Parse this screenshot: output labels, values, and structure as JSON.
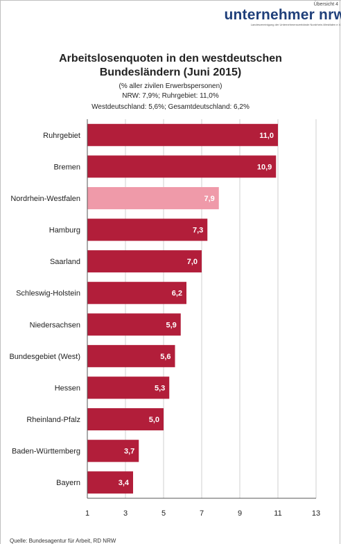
{
  "header": {
    "uebersicht": "Übersicht 4",
    "logo_text": "unternehmer nrw",
    "logo_subtext": "Landesvereinigung der Unternehmensverbände Nordrhein-Westfalen e.V."
  },
  "footer": {
    "source": "Quelle: Bundesagentur für Arbeit, RD NRW"
  },
  "colors": {
    "bar": "#b21e3a",
    "bar_highlight": "#ef9aa9",
    "grid": "#cfcfcf",
    "axis": "#555555"
  },
  "chart_data": {
    "type": "bar",
    "orientation": "horizontal",
    "title_line1": "Arbeitslosenquoten in den westdeutschen",
    "title_line2": "Bundesländern (Juni 2015)",
    "subtitle_line1": "(% aller zivilen Erwerbspersonen)",
    "subtitle_line2": "NRW: 7,9%; Ruhrgebiet: 11,0%",
    "subtitle_line3": "Westdeutschland: 5,6%; Gesamtdeutschland: 6,2%",
    "categories": [
      "Ruhrgebiet",
      "Bremen",
      "Nordrhein-Westfalen",
      "Hamburg",
      "Saarland",
      "Schleswig-Holstein",
      "Niedersachsen",
      "Bundesgebiet (West)",
      "Hessen",
      "Rheinland-Pfalz",
      "Baden-Württemberg",
      "Bayern"
    ],
    "values": [
      11.0,
      10.9,
      7.9,
      7.3,
      7.0,
      6.2,
      5.9,
      5.6,
      5.3,
      5.0,
      3.7,
      3.4
    ],
    "value_labels": [
      "11,0",
      "10,9",
      "7,9",
      "7,3",
      "7,0",
      "6,2",
      "5,9",
      "5,6",
      "5,3",
      "5,0",
      "3,7",
      "3,4"
    ],
    "highlight_category": "Nordrhein-Westfalen",
    "xlim": [
      1,
      13
    ],
    "xticks": [
      1,
      3,
      5,
      7,
      9,
      11,
      13
    ],
    "xtick_labels": [
      "1",
      "3",
      "5",
      "7",
      "9",
      "11",
      "13"
    ],
    "grid": true
  }
}
